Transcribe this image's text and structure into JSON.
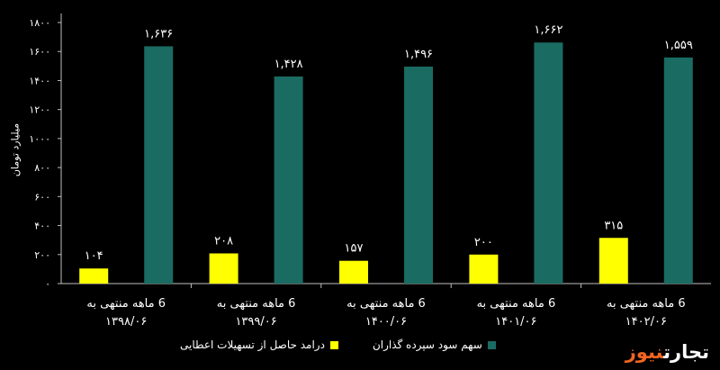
{
  "chart_data": {
    "type": "bar",
    "categories": [
      [
        "6 ماهه منتهی به",
        "۱۳۹۸/۰۶"
      ],
      [
        "6 ماهه منتهی به",
        "۱۳۹۹/۰۶"
      ],
      [
        "6 ماهه منتهی به",
        "۱۴۰۰/۰۶"
      ],
      [
        "6 ماهه منتهی به",
        "۱۴۰۱/۰۶"
      ],
      [
        "6 ماهه منتهی به",
        "۱۴۰۲/۰۶"
      ]
    ],
    "series": [
      {
        "name": "درامد حاصل از تسهیلات اعطایی",
        "color": "#ffff00",
        "values": [
          104,
          208,
          157,
          200,
          315
        ],
        "labels": [
          "۱۰۴",
          "۲۰۸",
          "۱۵۷",
          "۲۰۰",
          "۳۱۵"
        ]
      },
      {
        "name": "سهم سود سپرده گذاران",
        "color": "#1a6b62",
        "values": [
          1636,
          1428,
          1496,
          1662,
          1559
        ],
        "labels": [
          "۱,۶۳۶",
          "۱,۴۲۸",
          "۱,۴۹۶",
          "۱,۶۶۲",
          "۱,۵۵۹"
        ]
      }
    ],
    "ylabel": "میلیارد تومان",
    "ylim": [
      0,
      1800
    ],
    "yticks": [
      0,
      200,
      400,
      600,
      800,
      1000,
      1200,
      1400,
      1600,
      1800
    ],
    "ytick_labels": [
      "۰",
      "۲۰۰",
      "۴۰۰",
      "۶۰۰",
      "۸۰۰",
      "۱۰۰۰",
      "۱۲۰۰",
      "۱۴۰۰",
      "۱۶۰۰",
      "۱۸۰۰"
    ],
    "grid": false,
    "legend_position": "bottom"
  },
  "logo": {
    "part1": "تجارت",
    "part2": "نیوز",
    "color1": "#ffffff",
    "color2": "#f26522"
  }
}
